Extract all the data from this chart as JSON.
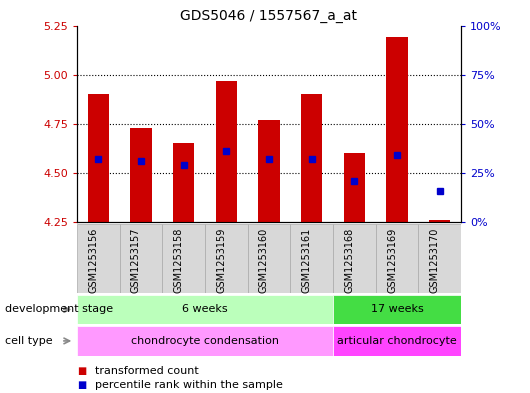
{
  "title": "GDS5046 / 1557567_a_at",
  "samples": [
    "GSM1253156",
    "GSM1253157",
    "GSM1253158",
    "GSM1253159",
    "GSM1253160",
    "GSM1253161",
    "GSM1253168",
    "GSM1253169",
    "GSM1253170"
  ],
  "transformed_count": [
    4.9,
    4.73,
    4.65,
    4.97,
    4.77,
    4.9,
    4.6,
    5.19,
    4.26
  ],
  "percentile_rank_left": [
    4.57,
    4.56,
    4.54,
    4.61,
    4.57,
    4.57,
    4.46,
    4.59,
    4.41
  ],
  "ylim_left": [
    4.25,
    5.25
  ],
  "ylim_right": [
    0,
    100
  ],
  "yticks_left": [
    4.25,
    4.5,
    4.75,
    5.0,
    5.25
  ],
  "yticks_right": [
    0,
    25,
    50,
    75,
    100
  ],
  "bar_color": "#cc0000",
  "dot_color": "#0000cc",
  "bar_width": 0.5,
  "development_stage_groups": [
    {
      "label": "6 weeks",
      "start": 0,
      "end": 6,
      "color": "#bbffbb"
    },
    {
      "label": "17 weeks",
      "start": 6,
      "end": 9,
      "color": "#44dd44"
    }
  ],
  "cell_type_groups": [
    {
      "label": "chondrocyte condensation",
      "start": 0,
      "end": 6,
      "color": "#ff99ff"
    },
    {
      "label": "articular chondrocyte",
      "start": 6,
      "end": 9,
      "color": "#ff44ff"
    }
  ],
  "row_labels": [
    "development stage",
    "cell type"
  ],
  "legend_items": [
    {
      "color": "#cc0000",
      "label": "transformed count"
    },
    {
      "color": "#0000cc",
      "label": "percentile rank within the sample"
    }
  ],
  "bg_color": "#ffffff",
  "plot_bg_color": "#ffffff",
  "tick_label_color_left": "#cc0000",
  "tick_label_color_right": "#0000cc",
  "sample_box_color": "#d8d8d8",
  "sample_box_border": "#aaaaaa"
}
